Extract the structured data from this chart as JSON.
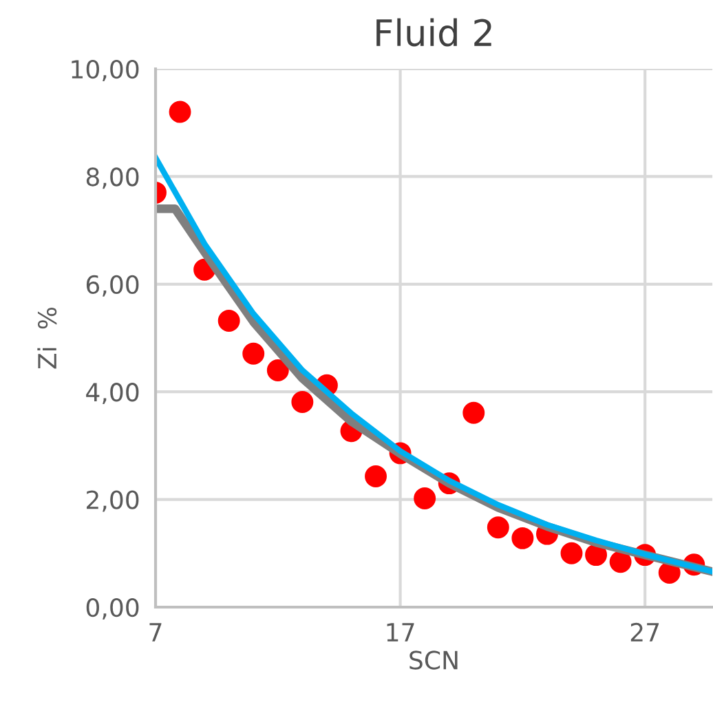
{
  "chart_data": {
    "type": "scatter",
    "title": "Fluid 2",
    "xlabel": "SCN",
    "ylabel": "Zi  %",
    "xlim": [
      7,
      29.75
    ],
    "xticks": [
      7,
      17,
      27
    ],
    "ylim": [
      0,
      10
    ],
    "yticks": [
      {
        "value": 0,
        "label": "0,00"
      },
      {
        "value": 2,
        "label": "2,00"
      },
      {
        "value": 4,
        "label": "4,00"
      },
      {
        "value": 6,
        "label": "6,00"
      },
      {
        "value": 8,
        "label": "8,00"
      },
      {
        "value": 10,
        "label": "10,00"
      }
    ],
    "grid": true,
    "legend": false,
    "series": [
      {
        "type": "line",
        "color": "#7f7f7f",
        "x": [
          7,
          7.8,
          9,
          11,
          13,
          15,
          17,
          19,
          21,
          23,
          25,
          27,
          29.75
        ],
        "values": [
          7.4,
          7.4,
          6.6,
          5.3,
          4.25,
          3.45,
          2.85,
          2.3,
          1.85,
          1.5,
          1.2,
          0.97,
          0.66
        ]
      },
      {
        "type": "line",
        "color": "#00b0f0",
        "x": [
          7,
          9,
          11,
          13,
          15,
          17,
          19,
          21,
          23,
          25,
          27,
          29.75
        ],
        "values": [
          8.35,
          6.75,
          5.45,
          4.4,
          3.6,
          2.9,
          2.35,
          1.9,
          1.53,
          1.24,
          0.98,
          0.66
        ]
      },
      {
        "color": "#ff0000",
        "marker": "circle",
        "x": [
          7,
          8,
          9,
          10,
          11,
          12,
          13,
          14,
          15,
          16,
          17,
          18,
          19,
          20,
          21,
          22,
          23,
          24,
          25,
          26,
          27,
          28,
          29
        ],
        "values": [
          7.7,
          9.2,
          6.27,
          5.32,
          4.71,
          4.4,
          3.81,
          4.12,
          3.27,
          2.43,
          2.86,
          2.02,
          2.3,
          3.61,
          1.48,
          1.28,
          1.36,
          1.0,
          0.97,
          0.84,
          0.97,
          0.64,
          0.79
        ]
      }
    ]
  }
}
